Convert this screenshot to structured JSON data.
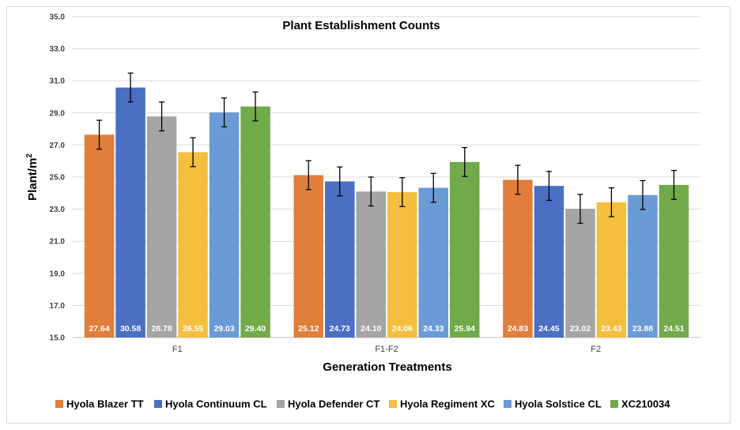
{
  "chart_data": {
    "type": "bar",
    "title": "Plant Establishment Counts",
    "xlabel": "Generation Treatments",
    "ylabel": "Plant/m",
    "ylabel_superscript": "2",
    "ylim": [
      15.0,
      35.0
    ],
    "yticks": [
      "15.0",
      "17.0",
      "19.0",
      "21.0",
      "23.0",
      "25.0",
      "27.0",
      "29.0",
      "31.0",
      "33.0",
      "35.0"
    ],
    "categories": [
      "F1",
      "F1-F2",
      "F2"
    ],
    "series": [
      {
        "name": "Hyola Blazer TT",
        "color": "#E07E3C",
        "values": [
          27.64,
          25.12,
          24.83
        ],
        "labels": [
          "27.64",
          "25.12",
          "24.83"
        ],
        "err": [
          0.9,
          0.9,
          0.9
        ]
      },
      {
        "name": "Hyola Continuum CL",
        "color": "#4A6FC3",
        "values": [
          30.58,
          24.73,
          24.45
        ],
        "labels": [
          "30.58",
          "24.73",
          "24.45"
        ],
        "err": [
          0.9,
          0.9,
          0.9
        ]
      },
      {
        "name": "Hyola Defender CT",
        "color": "#A5A5A5",
        "values": [
          28.78,
          24.1,
          23.02
        ],
        "labels": [
          "28.78",
          "24.10",
          "23.02"
        ],
        "err": [
          0.9,
          0.9,
          0.9
        ]
      },
      {
        "name": "Hyola Regiment XC",
        "color": "#F4BF3F",
        "values": [
          26.55,
          24.06,
          23.43
        ],
        "labels": [
          "26.55",
          "24.06",
          "23.43"
        ],
        "err": [
          0.9,
          0.9,
          0.9
        ]
      },
      {
        "name": "Hyola Solstice CL",
        "color": "#6B9BD6",
        "values": [
          29.03,
          24.33,
          23.88
        ],
        "labels": [
          "29.03",
          "24.33",
          "23.88"
        ],
        "err": [
          0.9,
          0.9,
          0.9
        ]
      },
      {
        "name": "XC210034",
        "color": "#72AA4A",
        "values": [
          29.4,
          25.94,
          24.51
        ],
        "labels": [
          "29.40",
          "25.94",
          "24.51"
        ],
        "err": [
          0.9,
          0.9,
          0.9
        ]
      }
    ],
    "grid": true,
    "legend_position": "bottom"
  }
}
